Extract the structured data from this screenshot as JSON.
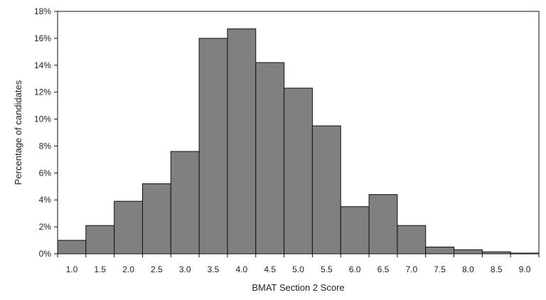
{
  "chart_data": {
    "type": "bar",
    "xlabel": "BMAT Section 2 Score",
    "ylabel": "Percentage of candidates",
    "ylim": [
      0,
      18
    ],
    "y_ticks": [
      "0%",
      "2%",
      "4%",
      "6%",
      "8%",
      "10%",
      "12%",
      "14%",
      "16%",
      "18%"
    ],
    "grid": false,
    "bar_color": "#808080",
    "bar_edge_color": "#111111",
    "categories": [
      "1.0",
      "1.5",
      "2.0",
      "2.5",
      "3.0",
      "3.5",
      "4.0",
      "4.5",
      "5.0",
      "5.5",
      "6.0",
      "6.5",
      "7.0",
      "7.5",
      "8.0",
      "8.5",
      "9.0"
    ],
    "values": [
      1.0,
      2.1,
      3.9,
      5.2,
      7.6,
      16.0,
      16.7,
      14.2,
      12.3,
      9.5,
      3.5,
      4.4,
      2.1,
      0.5,
      0.3,
      0.15,
      0.05
    ]
  }
}
